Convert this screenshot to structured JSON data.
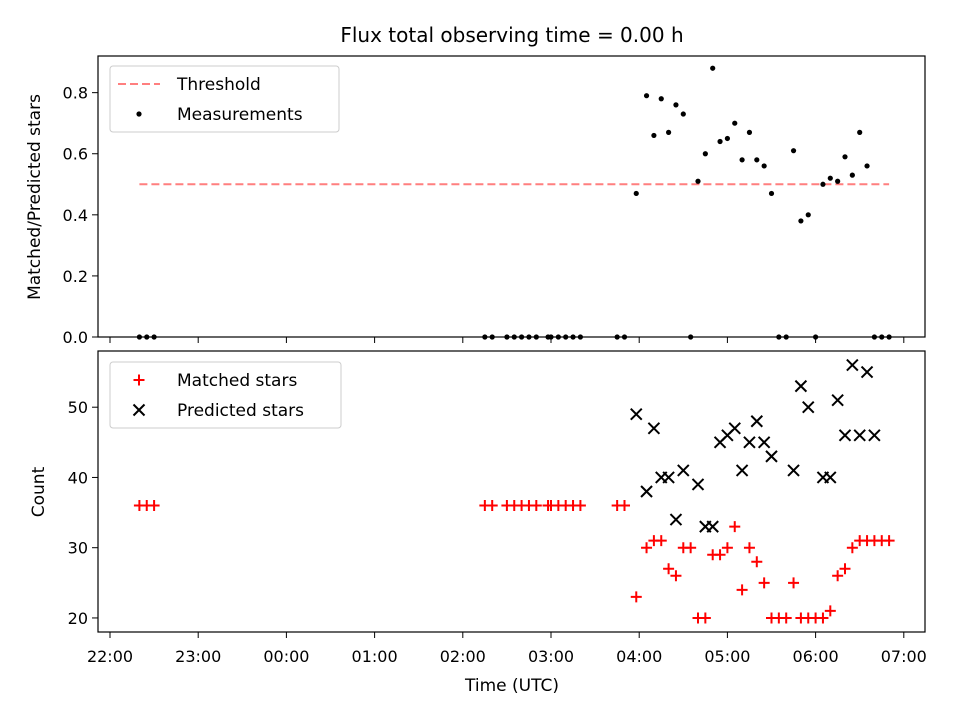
{
  "chart_data": [
    {
      "type": "scatter",
      "title": "Flux total observing time = 0.00 h",
      "xlabel": "",
      "ylabel": "Matched/Predicted stars",
      "ylim": [
        0,
        0.92
      ],
      "yticks": [
        "0.0",
        "0.2",
        "0.4",
        "0.6",
        "0.8"
      ],
      "ytick_values": [
        0,
        0.2,
        0.4,
        0.6,
        0.8
      ],
      "legend_position": "upper-left",
      "colors": {
        "threshold": "#ff7f7f",
        "measurements": "#000000"
      },
      "series": [
        {
          "name": "Threshold",
          "style": "dashed-line",
          "x": [
            "22:20",
            "06:50"
          ],
          "y": [
            0.5,
            0.5
          ]
        },
        {
          "name": "Measurements",
          "style": "dot",
          "x": [
            "22:20",
            "22:25",
            "22:30",
            "02:15",
            "02:20",
            "02:30",
            "02:35",
            "02:40",
            "02:45",
            "02:50",
            "02:58",
            "03:00",
            "03:05",
            "03:10",
            "03:15",
            "03:20",
            "03:45",
            "03:50",
            "03:58",
            "04:05",
            "04:10",
            "04:15",
            "04:20",
            "04:25",
            "04:30",
            "04:35",
            "04:40",
            "04:45",
            "04:50",
            "04:55",
            "05:00",
            "05:05",
            "05:10",
            "05:15",
            "05:20",
            "05:25",
            "05:30",
            "05:35",
            "05:40",
            "05:45",
            "05:50",
            "05:55",
            "06:00",
            "06:05",
            "06:10",
            "06:15",
            "06:20",
            "06:25",
            "06:30",
            "06:35",
            "06:40",
            "06:45",
            "06:50"
          ],
          "y": [
            0,
            0,
            0,
            0,
            0,
            0,
            0,
            0,
            0,
            0,
            0,
            0,
            0,
            0,
            0,
            0,
            0,
            0,
            0.47,
            0.79,
            0.66,
            0.78,
            0.67,
            0.76,
            0.73,
            0,
            0.51,
            0.6,
            0.88,
            0.64,
            0.65,
            0.7,
            0.58,
            0.67,
            0.58,
            0.56,
            0.47,
            0,
            0,
            0.61,
            0.38,
            0.4,
            0,
            0.5,
            0.52,
            0.51,
            0.59,
            0.53,
            0.67,
            0.56,
            0,
            0,
            0
          ]
        }
      ]
    },
    {
      "type": "scatter",
      "title": "",
      "xlabel": "Time (UTC)",
      "ylabel": "Count",
      "ylim": [
        18,
        58
      ],
      "yticks": [
        "20",
        "30",
        "40",
        "50"
      ],
      "ytick_values": [
        20,
        30,
        40,
        50
      ],
      "xticks": [
        "22:00",
        "23:00",
        "00:00",
        "01:00",
        "02:00",
        "03:00",
        "04:00",
        "05:00",
        "06:00",
        "07:00"
      ],
      "legend_position": "upper-left",
      "colors": {
        "matched": "#ff0000",
        "predicted": "#000000"
      },
      "series": [
        {
          "name": "Matched stars",
          "marker": "+",
          "x": [
            "22:20",
            "22:25",
            "22:30",
            "02:15",
            "02:20",
            "02:30",
            "02:35",
            "02:40",
            "02:45",
            "02:50",
            "02:58",
            "03:00",
            "03:05",
            "03:10",
            "03:15",
            "03:20",
            "03:45",
            "03:50",
            "03:58",
            "04:05",
            "04:10",
            "04:15",
            "04:20",
            "04:25",
            "04:30",
            "04:35",
            "04:40",
            "04:45",
            "04:50",
            "04:55",
            "05:00",
            "05:05",
            "05:10",
            "05:15",
            "05:20",
            "05:25",
            "05:30",
            "05:35",
            "05:40",
            "05:45",
            "05:50",
            "05:55",
            "06:00",
            "06:05",
            "06:10",
            "06:15",
            "06:20",
            "06:25",
            "06:30",
            "06:35",
            "06:40",
            "06:45",
            "06:50"
          ],
          "y": [
            36,
            36,
            36,
            36,
            36,
            36,
            36,
            36,
            36,
            36,
            36,
            36,
            36,
            36,
            36,
            36,
            36,
            36,
            23,
            30,
            31,
            31,
            27,
            26,
            30,
            30,
            20,
            20,
            29,
            29,
            30,
            33,
            24,
            30,
            28,
            25,
            20,
            20,
            20,
            25,
            20,
            20,
            20,
            20,
            21,
            26,
            27,
            30,
            31,
            31,
            31,
            31,
            31
          ]
        },
        {
          "name": "Predicted stars",
          "marker": "x",
          "x": [
            "03:58",
            "04:05",
            "04:10",
            "04:15",
            "04:20",
            "04:25",
            "04:30",
            "04:40",
            "04:45",
            "04:50",
            "04:55",
            "05:00",
            "05:05",
            "05:10",
            "05:15",
            "05:20",
            "05:25",
            "05:30",
            "05:45",
            "05:50",
            "05:55",
            "06:05",
            "06:10",
            "06:15",
            "06:20",
            "06:25",
            "06:30",
            "06:35",
            "06:40"
          ],
          "y": [
            49,
            38,
            47,
            40,
            40,
            34,
            41,
            39,
            33,
            33,
            45,
            46,
            47,
            41,
            45,
            48,
            45,
            43,
            41,
            53,
            50,
            40,
            40,
            51,
            46,
            56,
            46,
            55,
            46
          ]
        }
      ]
    }
  ]
}
